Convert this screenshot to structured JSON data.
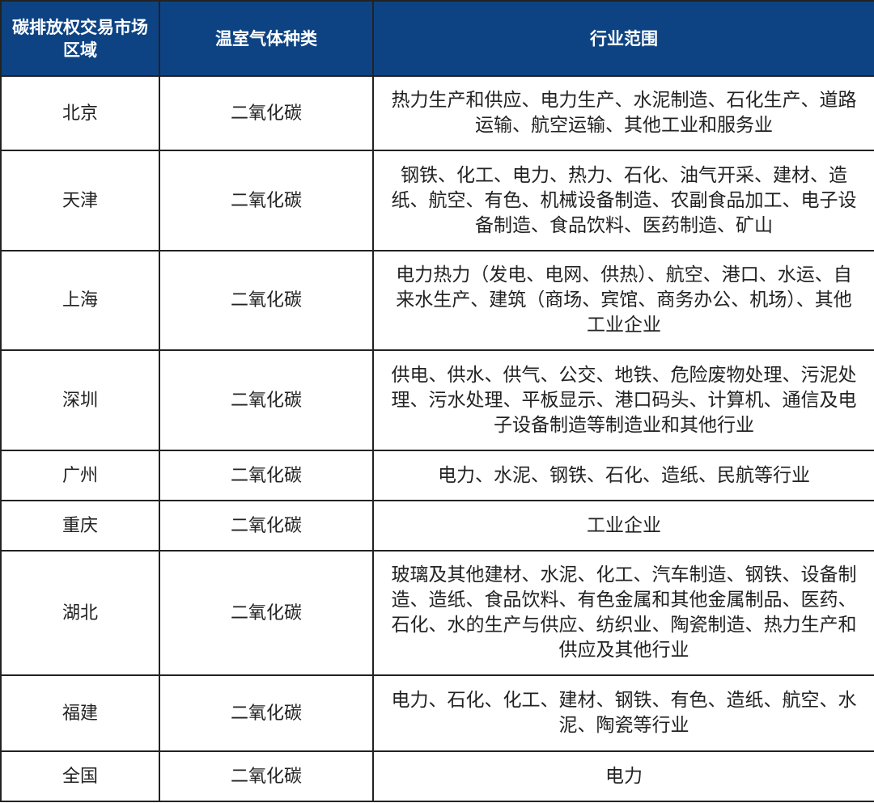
{
  "header": {
    "region": "碳排放权交易市场区域",
    "gas": "温室气体种类",
    "scope": "行业范围"
  },
  "colors": {
    "header_bg": "#0d4383",
    "header_text": "#ffffff",
    "border": "#222222"
  },
  "rows": [
    {
      "region": "北京",
      "gas": "二氧化碳",
      "scope": "热力生产和供应、电力生产、水泥制造、石化生产、道路运输、航空运输、其他工业和服务业"
    },
    {
      "region": "天津",
      "gas": "二氧化碳",
      "scope": "钢铁、化工、电力、热力、石化、油气开采、建材、造纸、航空、有色、机械设备制造、农副食品加工、电子设备制造、食品饮料、医药制造、矿山"
    },
    {
      "region": "上海",
      "gas": "二氧化碳",
      "scope": "电力热力（发电、电网、供热）、航空、港口、水运、自来水生产、建筑（商场、宾馆、商务办公、机场）、其他工业企业"
    },
    {
      "region": "深圳",
      "gas": "二氧化碳",
      "scope": "供电、供水、供气、公交、地铁、危险废物处理、污泥处理、污水处理、平板显示、港口码头、计算机、通信及电子设备制造等制造业和其他行业"
    },
    {
      "region": "广州",
      "gas": "二氧化碳",
      "scope": "电力、水泥、钢铁、石化、造纸、民航等行业"
    },
    {
      "region": "重庆",
      "gas": "二氧化碳",
      "scope": "工业企业"
    },
    {
      "region": "湖北",
      "gas": "二氧化碳",
      "scope": "玻璃及其他建材、水泥、化工、汽车制造、钢铁、设备制造、造纸、食品饮料、有色金属和其他金属制品、医药、石化、水的生产与供应、纺织业、陶瓷制造、热力生产和供应及其他行业"
    },
    {
      "region": "福建",
      "gas": "二氧化碳",
      "scope": "电力、石化、化工、建材、钢铁、有色、造纸、航空、水泥、陶瓷等行业"
    },
    {
      "region": "全国",
      "gas": "二氧化碳",
      "scope": "电力"
    }
  ]
}
